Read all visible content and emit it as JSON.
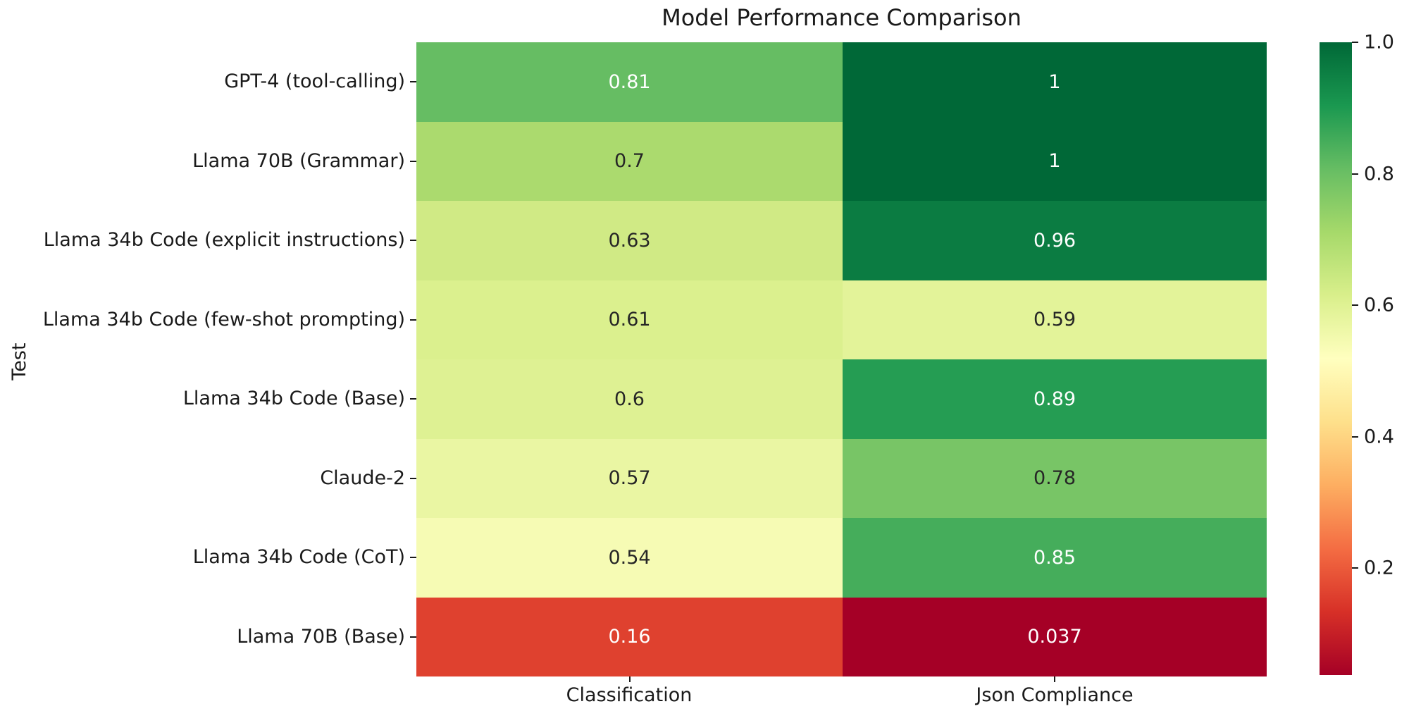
{
  "chart_data": {
    "type": "heatmap",
    "title": "Model Performance Comparison",
    "xlabel": "",
    "ylabel": "Test",
    "columns": [
      "Classification",
      "Json Compliance"
    ],
    "rows": [
      "GPT-4 (tool-calling)",
      "Llama 70B (Grammar)",
      "Llama 34b Code (explicit instructions)",
      "Llama 34b Code (few-shot prompting)",
      "Llama 34b Code (Base)",
      "Claude-2",
      "Llama 34b Code (CoT)",
      "Llama 70B (Base)"
    ],
    "values": [
      [
        0.81,
        1
      ],
      [
        0.7,
        1
      ],
      [
        0.63,
        0.96
      ],
      [
        0.61,
        0.59
      ],
      [
        0.6,
        0.89
      ],
      [
        0.57,
        0.78
      ],
      [
        0.54,
        0.85
      ],
      [
        0.16,
        0.037
      ]
    ],
    "value_labels": [
      [
        "0.81",
        "1"
      ],
      [
        "0.7",
        "1"
      ],
      [
        "0.63",
        "0.96"
      ],
      [
        "0.61",
        "0.59"
      ],
      [
        "0.6",
        "0.89"
      ],
      [
        "0.57",
        "0.78"
      ],
      [
        "0.54",
        "0.85"
      ],
      [
        "0.16",
        "0.037"
      ]
    ],
    "cell_colors": [
      [
        "#66bd63",
        "#006837"
      ],
      [
        "#abda6e",
        "#006837"
      ],
      [
        "#d0ea85",
        "#0b7c42"
      ],
      [
        "#dbf08e",
        "#e3f399"
      ],
      [
        "#def193",
        "#259d53"
      ],
      [
        "#eaf6a3",
        "#78c566"
      ],
      [
        "#f6fbb4",
        "#45ad5b"
      ],
      [
        "#df412f",
        "#a50026"
      ]
    ],
    "cell_text_colors": [
      [
        "#ffffff",
        "#ffffff"
      ],
      [
        "#262626",
        "#ffffff"
      ],
      [
        "#262626",
        "#ffffff"
      ],
      [
        "#262626",
        "#262626"
      ],
      [
        "#262626",
        "#ffffff"
      ],
      [
        "#262626",
        "#262626"
      ],
      [
        "#262626",
        "#ffffff"
      ],
      [
        "#ffffff",
        "#ffffff"
      ]
    ],
    "colormap": "RdYlGn",
    "grid": false,
    "colorbar": {
      "vmin": 0.037,
      "vmax": 1.0,
      "tick_labels": [
        "1.0",
        "0.8",
        "0.6",
        "0.4",
        "0.2"
      ],
      "tick_values": [
        1.0,
        0.8,
        0.6,
        0.4,
        0.2
      ],
      "gradient_stops_bottom_to_top": [
        "#a50026",
        "#d73027",
        "#f46d43",
        "#fdae61",
        "#fee08b",
        "#ffffbf",
        "#d9ef8b",
        "#a6d96a",
        "#66bd63",
        "#1a9850",
        "#006837"
      ]
    },
    "text_color": "#1a1a1a",
    "background_color": "#ffffff"
  }
}
